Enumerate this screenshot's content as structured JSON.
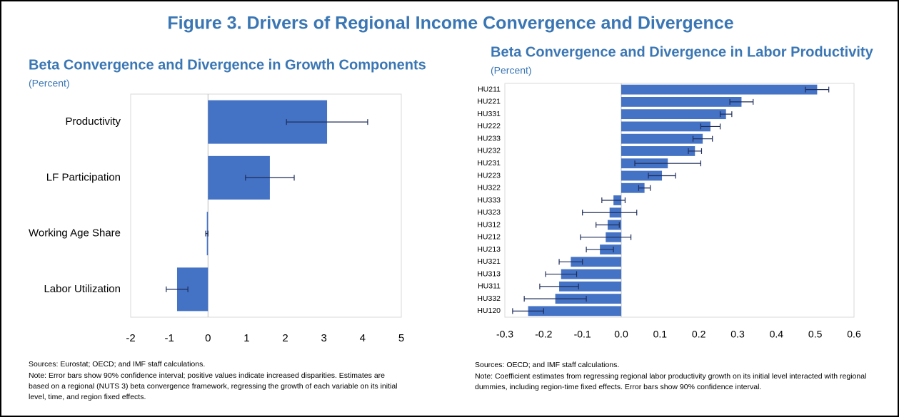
{
  "title": "Figure 3. Drivers of Regional Income Convergence and Divergence",
  "chart_data": [
    {
      "type": "hbar",
      "title": "Beta Convergence and Divergence in Growth Components",
      "subtitle": "(Percent)",
      "categories": [
        "Productivity",
        "LF Participation",
        "Working Age Share",
        "Labor Utilization"
      ],
      "values": [
        3.08,
        1.6,
        -0.03,
        -0.8
      ],
      "errors": [
        1.05,
        0.63,
        0.03,
        0.28
      ],
      "color": "#4472c4",
      "xlim": [
        -2,
        5
      ],
      "xticks": [
        -2,
        -1,
        0,
        1,
        2,
        3,
        4,
        5
      ],
      "sources": "Sources: Eurostat; OECD; and IMF staff calculations.",
      "note": "Note: Error bars show 90% confidence interval; positive values indicate increased disparities. Estimates are based on a regional (NUTS 3) beta convergence framework, regressing the growth of each variable on its initial level, time, and region fixed effects."
    },
    {
      "type": "hbar",
      "title": "Beta Convergence and Divergence in Labor Productivity",
      "subtitle": "(Percent)",
      "categories": [
        "HU211",
        "HU221",
        "HU331",
        "HU222",
        "HU233",
        "HU232",
        "HU231",
        "HU223",
        "HU322",
        "HU333",
        "HU323",
        "HU312",
        "HU212",
        "HU213",
        "HU321",
        "HU313",
        "HU311",
        "HU332",
        "HU120"
      ],
      "values": [
        0.505,
        0.31,
        0.27,
        0.23,
        0.21,
        0.19,
        0.12,
        0.105,
        0.06,
        -0.02,
        -0.03,
        -0.035,
        -0.04,
        -0.055,
        -0.13,
        -0.155,
        -0.16,
        -0.17,
        -0.24
      ],
      "errors": [
        0.03,
        0.03,
        0.015,
        0.025,
        0.025,
        0.017,
        0.085,
        0.035,
        0.015,
        0.03,
        0.07,
        0.03,
        0.065,
        0.035,
        0.03,
        0.04,
        0.05,
        0.08,
        0.04
      ],
      "color": "#4472c4",
      "xlim": [
        -0.3,
        0.6
      ],
      "xticks": [
        -0.3,
        -0.2,
        -0.1,
        {
          "value": 0,
          "label": "0.0"
        },
        0.1,
        0.2,
        0.3,
        0.4,
        0.5,
        0.6
      ],
      "sources": "Sources: OECD; and IMF staff calculations.",
      "note": "Note: Coefficient estimates from regressing regional labor productivity growth on its initial level interacted with regional dummies, including region-time fixed effects. Error bars show 90% confidence interval."
    }
  ]
}
